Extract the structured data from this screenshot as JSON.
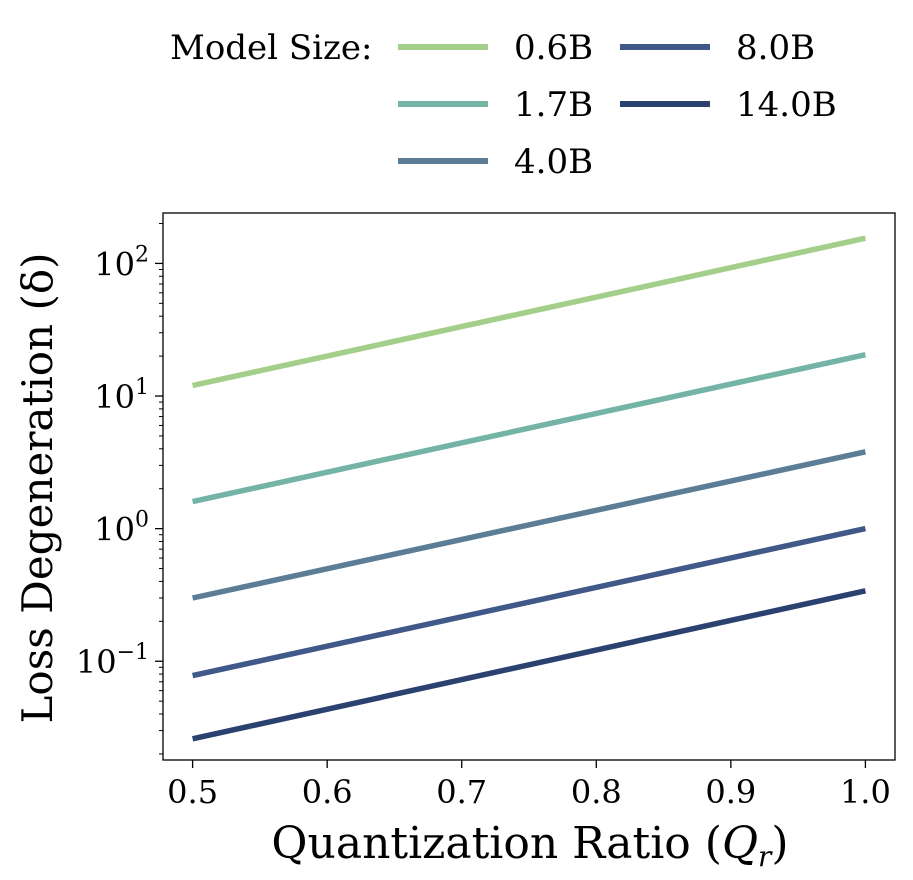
{
  "chart_data": {
    "type": "line",
    "title": "",
    "xlabel": "Quantization Ratio (Q_r)",
    "xlabel_main": "Quantization Ratio",
    "xlabel_paren_open": "(",
    "xlabel_symbol": "Q",
    "xlabel_subscript": "r",
    "xlabel_paren_close": ")",
    "ylabel": "Loss Degeneration (δ)",
    "yscale": "log",
    "xlim": [
      0.478,
      1.022
    ],
    "ylim": [
      0.018,
      240
    ],
    "x_ticks": [
      0.5,
      0.6,
      0.7,
      0.8,
      0.9,
      1.0
    ],
    "x_tick_labels": [
      "0.5",
      "0.6",
      "0.7",
      "0.8",
      "0.9",
      "1.0"
    ],
    "y_ticks": [
      {
        "value": 0.1,
        "base": "10",
        "exp": "−1"
      },
      {
        "value": 1,
        "base": "10",
        "exp": "0"
      },
      {
        "value": 10,
        "base": "10",
        "exp": "1"
      },
      {
        "value": 100,
        "base": "10",
        "exp": "2"
      }
    ],
    "legend": {
      "title": "Model Size:",
      "placement": "top-center",
      "ncol": 2
    },
    "series": [
      {
        "name": "0.6B",
        "color": "#a3cf8a",
        "x": [
          0.5,
          1.0
        ],
        "y": [
          12.0,
          155.0
        ]
      },
      {
        "name": "1.7B",
        "color": "#73b4a6",
        "x": [
          0.5,
          1.0
        ],
        "y": [
          1.6,
          20.5
        ]
      },
      {
        "name": "4.0B",
        "color": "#5b7e96",
        "x": [
          0.5,
          1.0
        ],
        "y": [
          0.3,
          3.8
        ]
      },
      {
        "name": "8.0B",
        "color": "#405988",
        "x": [
          0.5,
          1.0
        ],
        "y": [
          0.078,
          1.0
        ]
      },
      {
        "name": "14.0B",
        "color": "#2b4270",
        "x": [
          0.5,
          1.0
        ],
        "y": [
          0.026,
          0.34
        ]
      }
    ]
  }
}
